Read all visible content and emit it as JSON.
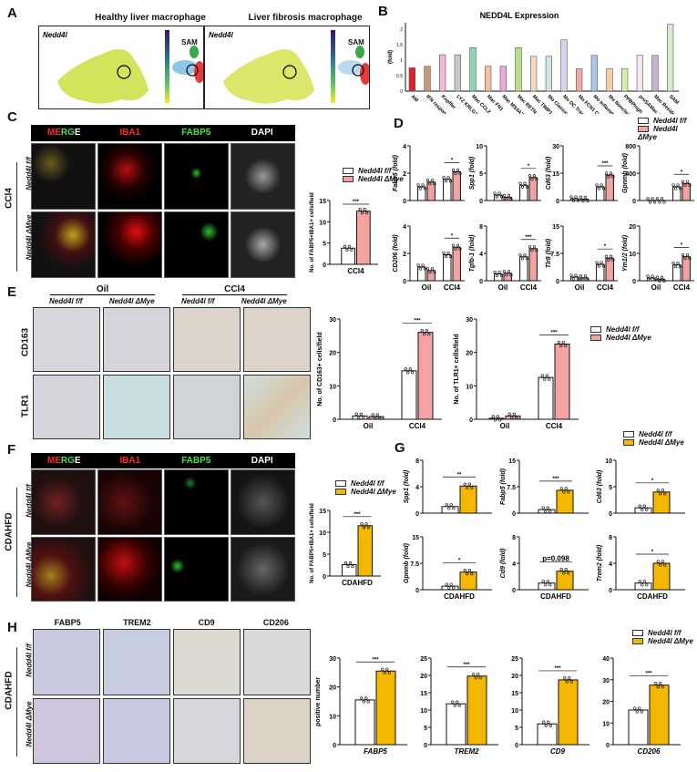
{
  "colors": {
    "control": "#ffffff",
    "ko_ccl4": "#f4a3a3",
    "ko_cdahfd": "#f5b800",
    "axis": "#111111"
  },
  "legend": {
    "control": "Nedd4l f/f",
    "ko": "Nedd4l ΔMye",
    "control_html": "Nedd4l",
    "control_sup": "f/f",
    "ko_sup": "ΔMye"
  },
  "panelA": {
    "label": "A",
    "healthy_title": "Healthy liver macrophage",
    "fibrosis_title": "Liver fibrosis macrophage",
    "gene": "Nedd4l",
    "annotation": "SAM"
  },
  "panelC": {
    "label": "C",
    "channels": [
      "MERGE",
      "IBA1",
      "FABP5",
      "DAPI"
    ],
    "merge_parts": [
      "ME",
      "RG",
      "E"
    ],
    "treatment": "CCl4",
    "rows": [
      "Nedd4l f/f",
      "Nedd4l ΔMye"
    ]
  },
  "panelE": {
    "label": "E",
    "groups": [
      "Oil",
      "CCl4"
    ],
    "rows": [
      "CD163",
      "TLR1"
    ]
  },
  "panelF": {
    "label": "F",
    "treatment": "CDAHFD"
  },
  "panelH": {
    "label": "H",
    "stains": [
      "FABP5",
      "TREM2",
      "CD9",
      "CD206"
    ],
    "treatment": "CDAHFD"
  },
  "panelB_label": "B",
  "panelD_label": "D",
  "panelG_label": "G",
  "chart_data": [
    {
      "id": "B",
      "type": "bar",
      "title": "NEDD4L Expression",
      "ylabel": "(fold)",
      "ylim": [
        0,
        2.2
      ],
      "categories": [
        "AM",
        "IFN responsive",
        "Kupffer",
        "LYZ KRLG1high",
        "Mac CCL2",
        "Mac FN1",
        "Mac MS4A7",
        "Mac RETN",
        "Mac TIMP1",
        "Mo Classical",
        "Mo DC Transitional",
        "Mo FCN1 CLEC4E",
        "Mo Inflammatory",
        "Mo Nonclassical",
        "PPBPhigh",
        "preSAMac APOE",
        "Mac Resident",
        "SAM"
      ],
      "values": [
        0.75,
        0.8,
        1.17,
        1.17,
        1.4,
        0.8,
        0.8,
        1.4,
        1.12,
        1.12,
        1.65,
        0.72,
        1.15,
        0.72,
        0.72,
        1.15,
        1.15,
        2.15
      ],
      "colors": [
        "#e0202a",
        "#c9957a",
        "#f3b9d6",
        "#c8c8c8",
        "#8fd4b8",
        "#f7c0a0",
        "#f0a8dc",
        "#b8e08a",
        "#f8d9bd",
        "#cde8e2",
        "#d6d4ee",
        "#f4aaa4",
        "#a9c8ec",
        "#f8cfa0",
        "#d6f0a8",
        "#f6e6f0",
        "#cdb0d6",
        "#d4ecc8"
      ]
    },
    {
      "id": "C",
      "type": "bar",
      "ylabel": "No. of FABP5+IBA1+ cells/field",
      "categories": [
        "CCl4"
      ],
      "ylim": [
        0,
        15
      ],
      "series": [
        {
          "name": "Nedd4l f/f",
          "values": [
            3.8
          ]
        },
        {
          "name": "Nedd4l ΔMye",
          "values": [
            12.5
          ]
        }
      ],
      "significance": [
        "***"
      ]
    },
    {
      "id": "D",
      "type": "bar",
      "categories": [
        "Oil",
        "CCl4"
      ],
      "panels": [
        {
          "ylabel": "Fabp5 (fold)",
          "ylim": [
            0,
            4
          ],
          "series": [
            {
              "name": "Nedd4l f/f",
              "values": [
                1.0,
                1.55
              ]
            },
            {
              "name": "Nedd4l ΔMye",
              "values": [
                1.35,
                2.1
              ]
            }
          ],
          "significance": [
            "",
            "*"
          ]
        },
        {
          "ylabel": "Spp1 (fold)",
          "ylim": [
            0,
            10
          ],
          "series": [
            {
              "name": "Nedd4l f/f",
              "values": [
                1.0,
                2.8
              ]
            },
            {
              "name": "Nedd4l ΔMye",
              "values": [
                0.6,
                4.2
              ]
            }
          ],
          "significance": [
            "",
            "*"
          ]
        },
        {
          "ylabel": "Cd63 (fold)",
          "ylim": [
            0,
            30
          ],
          "series": [
            {
              "name": "Nedd4l f/f",
              "values": [
                1.0,
                7.5
              ]
            },
            {
              "name": "Nedd4l ΔMye",
              "values": [
                0.8,
                14.0
              ]
            }
          ],
          "significance": [
            "",
            "***"
          ]
        },
        {
          "ylabel": "Gpnmb (fold)",
          "ylim": [
            0,
            800
          ],
          "series": [
            {
              "name": "Nedd4l f/f",
              "values": [
                1.0,
                200
              ]
            },
            {
              "name": "Nedd4l ΔMye",
              "values": [
                1.2,
                250
              ]
            }
          ],
          "significance": [
            "",
            "*"
          ]
        },
        {
          "ylabel": "CD206 (fold)",
          "ylim": [
            0,
            4
          ],
          "series": [
            {
              "name": "Nedd4l f/f",
              "values": [
                1.0,
                1.9
              ]
            },
            {
              "name": "Nedd4l ΔMye",
              "values": [
                0.75,
                2.45
              ]
            }
          ],
          "significance": [
            "",
            "*"
          ]
        },
        {
          "ylabel": "Tgfb-1 (fold)",
          "ylim": [
            0,
            8
          ],
          "series": [
            {
              "name": "Nedd4l f/f",
              "values": [
                1.0,
                3.5
              ]
            },
            {
              "name": "Nedd4l ΔMye",
              "values": [
                1.1,
                4.7
              ]
            }
          ],
          "significance": [
            "",
            "***"
          ]
        },
        {
          "ylabel": "Tlr8 (fold)",
          "ylim": [
            0,
            15
          ],
          "series": [
            {
              "name": "Nedd4l f/f",
              "values": [
                1.0,
                4.5
              ]
            },
            {
              "name": "Nedd4l ΔMye",
              "values": [
                0.8,
                6.2
              ]
            }
          ],
          "significance": [
            "",
            "*"
          ]
        },
        {
          "ylabel": "Ym1/2 (fold)",
          "ylim": [
            0,
            20
          ],
          "series": [
            {
              "name": "Nedd4l f/f",
              "values": [
                1.0,
                5.8
              ]
            },
            {
              "name": "Nedd4l ΔMye",
              "values": [
                0.6,
                8.8
              ]
            }
          ],
          "significance": [
            "",
            "*"
          ]
        }
      ]
    },
    {
      "id": "E",
      "type": "bar",
      "categories": [
        "Oil",
        "CCl4"
      ],
      "panels": [
        {
          "ylabel": "No. of CD163+ cells/field",
          "ylim": [
            0,
            30
          ],
          "series": [
            {
              "name": "Nedd4l f/f",
              "values": [
                1.0,
                14.5
              ]
            },
            {
              "name": "Nedd4l ΔMye",
              "values": [
                0.8,
                26.0
              ]
            }
          ],
          "significance": [
            "",
            "***"
          ]
        },
        {
          "ylabel": "No. of TLR1+ cells/field",
          "ylim": [
            0,
            30
          ],
          "series": [
            {
              "name": "Nedd4l f/f",
              "values": [
                0.3,
                12.5
              ]
            },
            {
              "name": "Nedd4l ΔMye",
              "values": [
                1.0,
                22.5
              ]
            }
          ],
          "significance": [
            "",
            "***"
          ]
        }
      ]
    },
    {
      "id": "F",
      "type": "bar",
      "ylabel": "No. of FABP5+IBA1+ cells/field",
      "categories": [
        "CDAHFD"
      ],
      "ylim": [
        0,
        15
      ],
      "series": [
        {
          "name": "Nedd4l f/f",
          "values": [
            2.6
          ]
        },
        {
          "name": "Nedd4l ΔMye",
          "values": [
            11.5
          ]
        }
      ],
      "significance": [
        "***"
      ]
    },
    {
      "id": "G",
      "type": "bar",
      "categories": [
        "CDAHFD"
      ],
      "panels": [
        {
          "ylabel": "Spp1 (fold)",
          "ylim": [
            0,
            8
          ],
          "series": [
            {
              "name": "Nedd4l f/f",
              "values": [
                1.0
              ]
            },
            {
              "name": "Nedd4l ΔMye",
              "values": [
                4.1
              ]
            }
          ],
          "significance": [
            "**"
          ]
        },
        {
          "ylabel": "Fabp5 (fold)",
          "ylim": [
            0,
            15
          ],
          "series": [
            {
              "name": "Nedd4l f/f",
              "values": [
                1.0
              ]
            },
            {
              "name": "Nedd4l ΔMye",
              "values": [
                6.5
              ]
            }
          ],
          "significance": [
            "***"
          ]
        },
        {
          "ylabel": "Cd63 (fold)",
          "ylim": [
            0,
            10
          ],
          "series": [
            {
              "name": "Nedd4l f/f",
              "values": [
                1.0
              ]
            },
            {
              "name": "Nedd4l ΔMye",
              "values": [
                4.0
              ]
            }
          ],
          "significance": [
            "*"
          ]
        },
        {
          "ylabel": "Gpnmb (fold)",
          "ylim": [
            0,
            15
          ],
          "series": [
            {
              "name": "Nedd4l f/f",
              "values": [
                1.0
              ]
            },
            {
              "name": "Nedd4l ΔMye",
              "values": [
                5.0
              ]
            }
          ],
          "significance": [
            "*"
          ]
        },
        {
          "ylabel": "Cd9 (fold)",
          "ylim": [
            0,
            8
          ],
          "series": [
            {
              "name": "Nedd4l f/f",
              "values": [
                1.0
              ]
            },
            {
              "name": "Nedd4l ΔMye",
              "values": [
                2.8
              ]
            }
          ],
          "significance": [
            "p=0.098"
          ]
        },
        {
          "ylabel": "Trem2 (fold)",
          "ylim": [
            0,
            8
          ],
          "series": [
            {
              "name": "Nedd4l f/f",
              "values": [
                1.0
              ]
            },
            {
              "name": "Nedd4l ΔMye",
              "values": [
                4.0
              ]
            }
          ],
          "significance": [
            "*"
          ]
        }
      ]
    },
    {
      "id": "H",
      "type": "bar",
      "ylabel": "positive number",
      "panels": [
        {
          "xlabel": "FABP5",
          "ylim": [
            0,
            30
          ],
          "series": [
            {
              "name": "Nedd4l f/f",
              "values": [
                15.5
              ]
            },
            {
              "name": "Nedd4l ΔMye",
              "values": [
                25.5
              ]
            }
          ],
          "significance": [
            "***"
          ]
        },
        {
          "xlabel": "TREM2",
          "ylim": [
            0,
            25
          ],
          "series": [
            {
              "name": "Nedd4l f/f",
              "values": [
                11.8
              ]
            },
            {
              "name": "Nedd4l ΔMye",
              "values": [
                19.8
              ]
            }
          ],
          "significance": [
            "***"
          ]
        },
        {
          "xlabel": "CD9",
          "ylim": [
            0,
            25
          ],
          "series": [
            {
              "name": "Nedd4l f/f",
              "values": [
                6.0
              ]
            },
            {
              "name": "Nedd4l ΔMye",
              "values": [
                18.7
              ]
            }
          ],
          "significance": [
            "***"
          ]
        },
        {
          "xlabel": "CD206",
          "ylim": [
            0,
            40
          ],
          "series": [
            {
              "name": "Nedd4l f/f",
              "values": [
                16.0
              ]
            },
            {
              "name": "Nedd4l ΔMye",
              "values": [
                27.5
              ]
            }
          ],
          "significance": [
            "***"
          ]
        }
      ]
    }
  ]
}
